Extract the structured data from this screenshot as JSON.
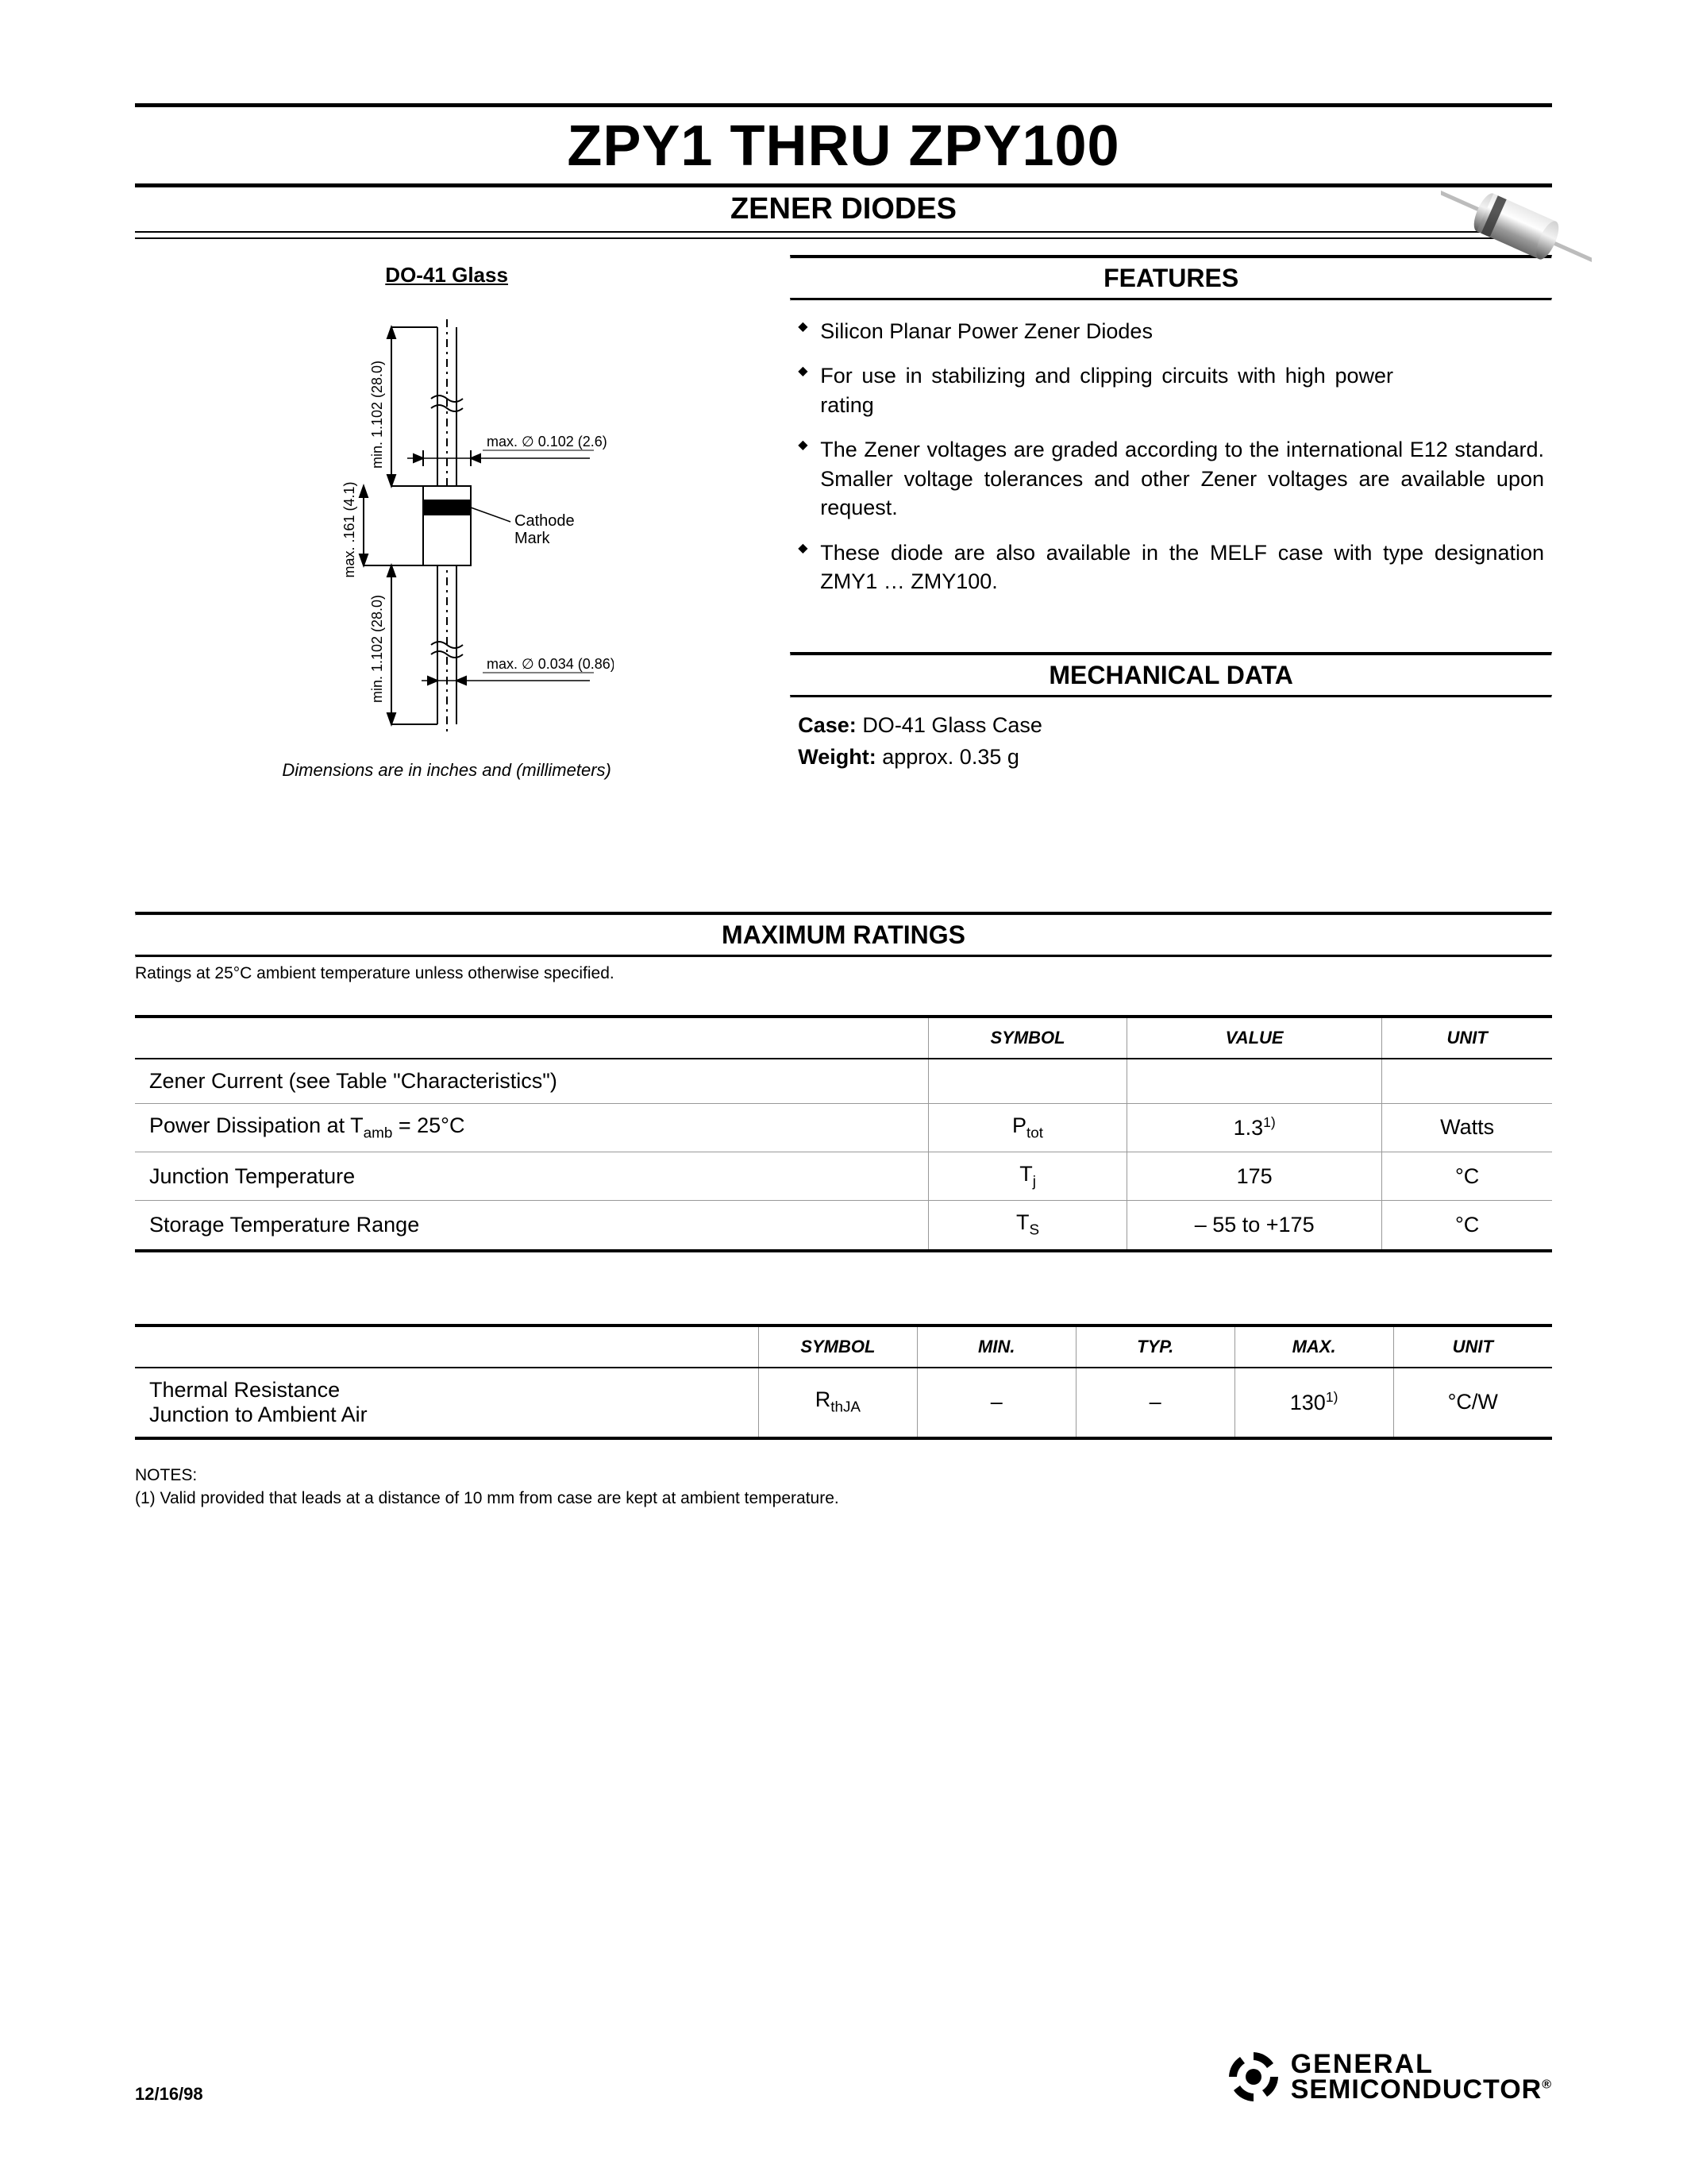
{
  "header": {
    "title": "ZPY1 THRU ZPY100",
    "subtitle": "ZENER DIODES"
  },
  "package": {
    "label": "DO-41 Glass",
    "caption": "Dimensions are in inches and (millimeters)",
    "diagram": {
      "lead_length_label": "min. 1.102 (28.0)",
      "body_length_label": "max. .161 (4.1)",
      "body_dia_label": "max. ∅ 0.102 (2.6)",
      "lead_dia_label": "max. ∅ 0.034 (0.86)",
      "cathode_label_l1": "Cathode",
      "cathode_label_l2": "Mark"
    }
  },
  "features": {
    "heading": "FEATURES",
    "items": [
      "Silicon Planar Power Zener Diodes",
      "For use in stabilizing and clipping circuits with high power rating",
      "The Zener voltages are graded according to the international E12 standard. Smaller voltage tolerances and other Zener voltages are available upon request.",
      "These diode are also available in the MELF case with type designation ZMY1 … ZMY100."
    ]
  },
  "mechanical": {
    "heading": "MECHANICAL DATA",
    "case_label": "Case:",
    "case_value": "DO-41 Glass Case",
    "weight_label": "Weight:",
    "weight_value": "approx. 0.35 g"
  },
  "max_ratings": {
    "heading": "MAXIMUM RATINGS",
    "note": "Ratings at 25°C ambient temperature unless otherwise specified.",
    "columns": [
      "",
      "SYMBOL",
      "VALUE",
      "UNIT"
    ],
    "rows": [
      {
        "param": "Zener Current (see Table \"Characteristics\")",
        "symbol": "",
        "value": "",
        "unit": ""
      },
      {
        "param_html": "Power Dissipation at T<sub>amb</sub> = 25°C",
        "symbol_html": "P<sub>tot</sub>",
        "value_html": "1.3<sup>1)</sup>",
        "unit": "Watts"
      },
      {
        "param": "Junction Temperature",
        "symbol_html": "T<sub>j</sub>",
        "value": "175",
        "unit": "°C"
      },
      {
        "param": "Storage Temperature Range",
        "symbol_html": "T<sub>S</sub>",
        "value": "– 55 to +175",
        "unit": "°C"
      }
    ]
  },
  "thermal": {
    "columns": [
      "",
      "SYMBOL",
      "MIN.",
      "TYP.",
      "MAX.",
      "UNIT"
    ],
    "row": {
      "param_l1": "Thermal Resistance",
      "param_l2": "Junction to Ambient Air",
      "symbol_html": "R<sub>thJA</sub>",
      "min": "–",
      "typ": "–",
      "max_html": "130<sup>1)</sup>",
      "unit": "°C/W"
    }
  },
  "notes": {
    "label": "NOTES:",
    "n1": "(1) Valid provided that leads at a distance of 10 mm from case are kept at ambient temperature."
  },
  "footer": {
    "date": "12/16/98",
    "logo_l1": "GENERAL",
    "logo_l2": "SEMICONDUCTOR",
    "reg": "®"
  },
  "style": {
    "rule_color": "#000000",
    "text_color": "#000000",
    "grid_color": "#999999",
    "background": "#ffffff"
  }
}
